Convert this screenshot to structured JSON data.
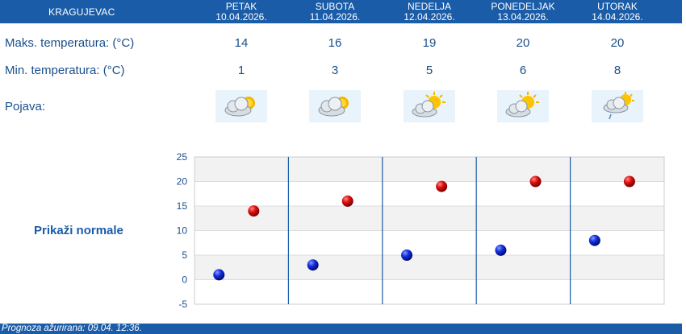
{
  "header": {
    "city": "KRAGUJEVAC",
    "days": [
      {
        "name": "PETAK",
        "date": "10.04.2026."
      },
      {
        "name": "SUBOTA",
        "date": "11.04.2026."
      },
      {
        "name": "NEDELJA",
        "date": "12.04.2026."
      },
      {
        "name": "PONEDELJAK",
        "date": "13.04.2026."
      },
      {
        "name": "UTORAK",
        "date": "14.04.2026."
      }
    ]
  },
  "rows": {
    "max_label": "Maks. temperatura: (°C)",
    "min_label": "Min. temperatura: (°C)",
    "weather_label": "Pojava:",
    "max_values": [
      "14",
      "16",
      "19",
      "20",
      "20"
    ],
    "min_values": [
      "1",
      "3",
      "5",
      "6",
      "8"
    ],
    "weather_icons": [
      "partly-cloudy-icon",
      "partly-cloudy-icon",
      "sun-behind-cloud-icon",
      "sun-behind-cloud-icon",
      "light-rain-sun-icon"
    ]
  },
  "show_normals_label": "Prikaži normale",
  "chart_data": {
    "type": "scatter",
    "categories": [
      "10.04.2026.",
      "11.04.2026.",
      "12.04.2026.",
      "13.04.2026.",
      "14.04.2026."
    ],
    "series": [
      {
        "name": "",
        "color": "#cc1111",
        "values": [
          14,
          16,
          19,
          20,
          20
        ]
      },
      {
        "name": "",
        "color": "#1122cc",
        "values": [
          1,
          3,
          5,
          6,
          8
        ]
      }
    ],
    "ylim": [
      -5,
      25
    ],
    "yticks": [
      "25",
      "20",
      "15",
      "10",
      "5",
      "0",
      "-5"
    ],
    "grid": true
  },
  "footer": {
    "text": "Prognoza ažurirana:  09.04. 12:36."
  },
  "colors": {
    "brand": "#1a5ca8",
    "text": "#1a4f8b",
    "band": "#f2f2f2"
  }
}
